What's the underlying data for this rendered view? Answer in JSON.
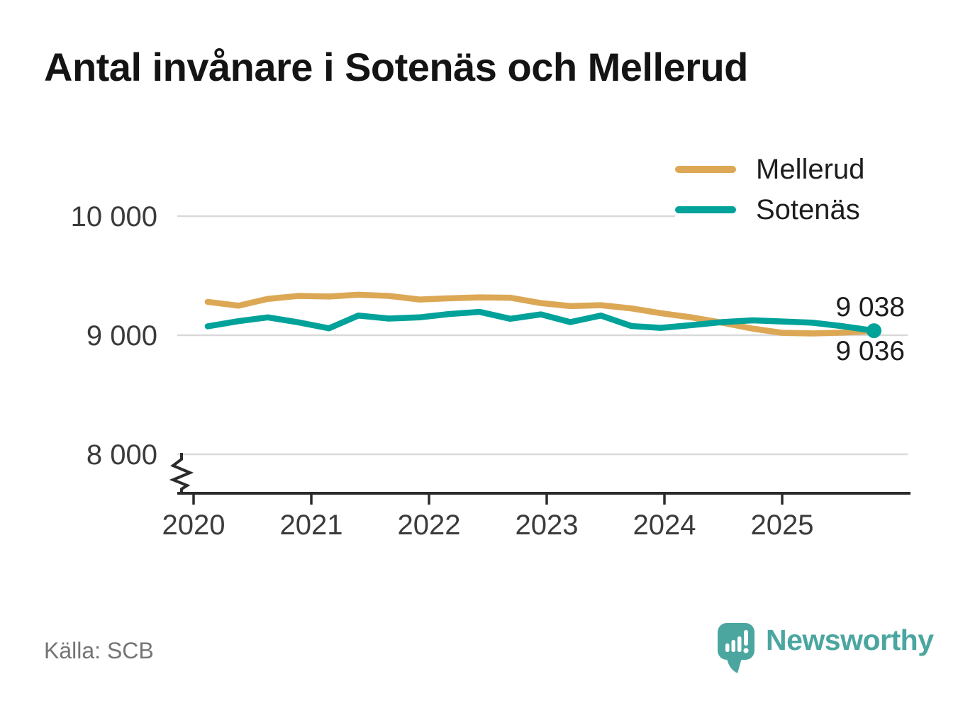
{
  "title": "Antal invånare i Sotenäs och Mellerud",
  "source_note": "Källa: SCB",
  "branding": {
    "logo_text": "Newsworthy",
    "color": "#4ba6a0"
  },
  "legend": {
    "items": [
      {
        "label": "Mellerud",
        "color": "#dca855"
      },
      {
        "label": "Sotenäs",
        "color": "#00a29a"
      }
    ]
  },
  "end_labels": {
    "sotenas": "9 038",
    "mellerud": "9 036"
  },
  "chart_data": {
    "type": "line",
    "title": "Antal invånare i Sotenäs och Mellerud",
    "xlabel": "",
    "ylabel": "",
    "grid": "horizontal",
    "legend_position": "top-right",
    "axis_break_below": 8000,
    "ylim": [
      7750,
      10250
    ],
    "x_ticks": [
      2020,
      2021,
      2022,
      2023,
      2024,
      2025
    ],
    "x_tick_labels": [
      "2020",
      "2021",
      "2022",
      "2023",
      "2024",
      "2025"
    ],
    "y_ticks": [
      10000,
      9000,
      8000
    ],
    "y_tick_labels": [
      "10 000",
      "9 000",
      "8 000"
    ],
    "x_unit": "decimal year, quarterly observations",
    "x": [
      2020.12,
      2020.38,
      2020.63,
      2020.89,
      2021.15,
      2021.4,
      2021.66,
      2021.92,
      2022.17,
      2022.43,
      2022.69,
      2022.95,
      2023.2,
      2023.46,
      2023.72,
      2023.97,
      2024.23,
      2024.49,
      2024.75,
      2025.0,
      2025.26,
      2025.52,
      2025.78
    ],
    "series": [
      {
        "name": "Mellerud",
        "color": "#dca855",
        "values": [
          9280,
          9248,
          9305,
          9330,
          9325,
          9340,
          9330,
          9300,
          9310,
          9318,
          9315,
          9270,
          9245,
          9252,
          9225,
          9185,
          9150,
          9105,
          9055,
          9020,
          9015,
          9022,
          9036
        ],
        "end_value": 9036,
        "end_value_label": "9 036"
      },
      {
        "name": "Sotenäs",
        "color": "#00a29a",
        "values": [
          9075,
          9118,
          9150,
          9108,
          9058,
          9165,
          9140,
          9150,
          9178,
          9196,
          9138,
          9175,
          9110,
          9165,
          9077,
          9062,
          9085,
          9110,
          9125,
          9115,
          9105,
          9075,
          9038
        ],
        "end_value": 9038,
        "end_value_label": "9 038",
        "end_dot": true
      }
    ]
  }
}
